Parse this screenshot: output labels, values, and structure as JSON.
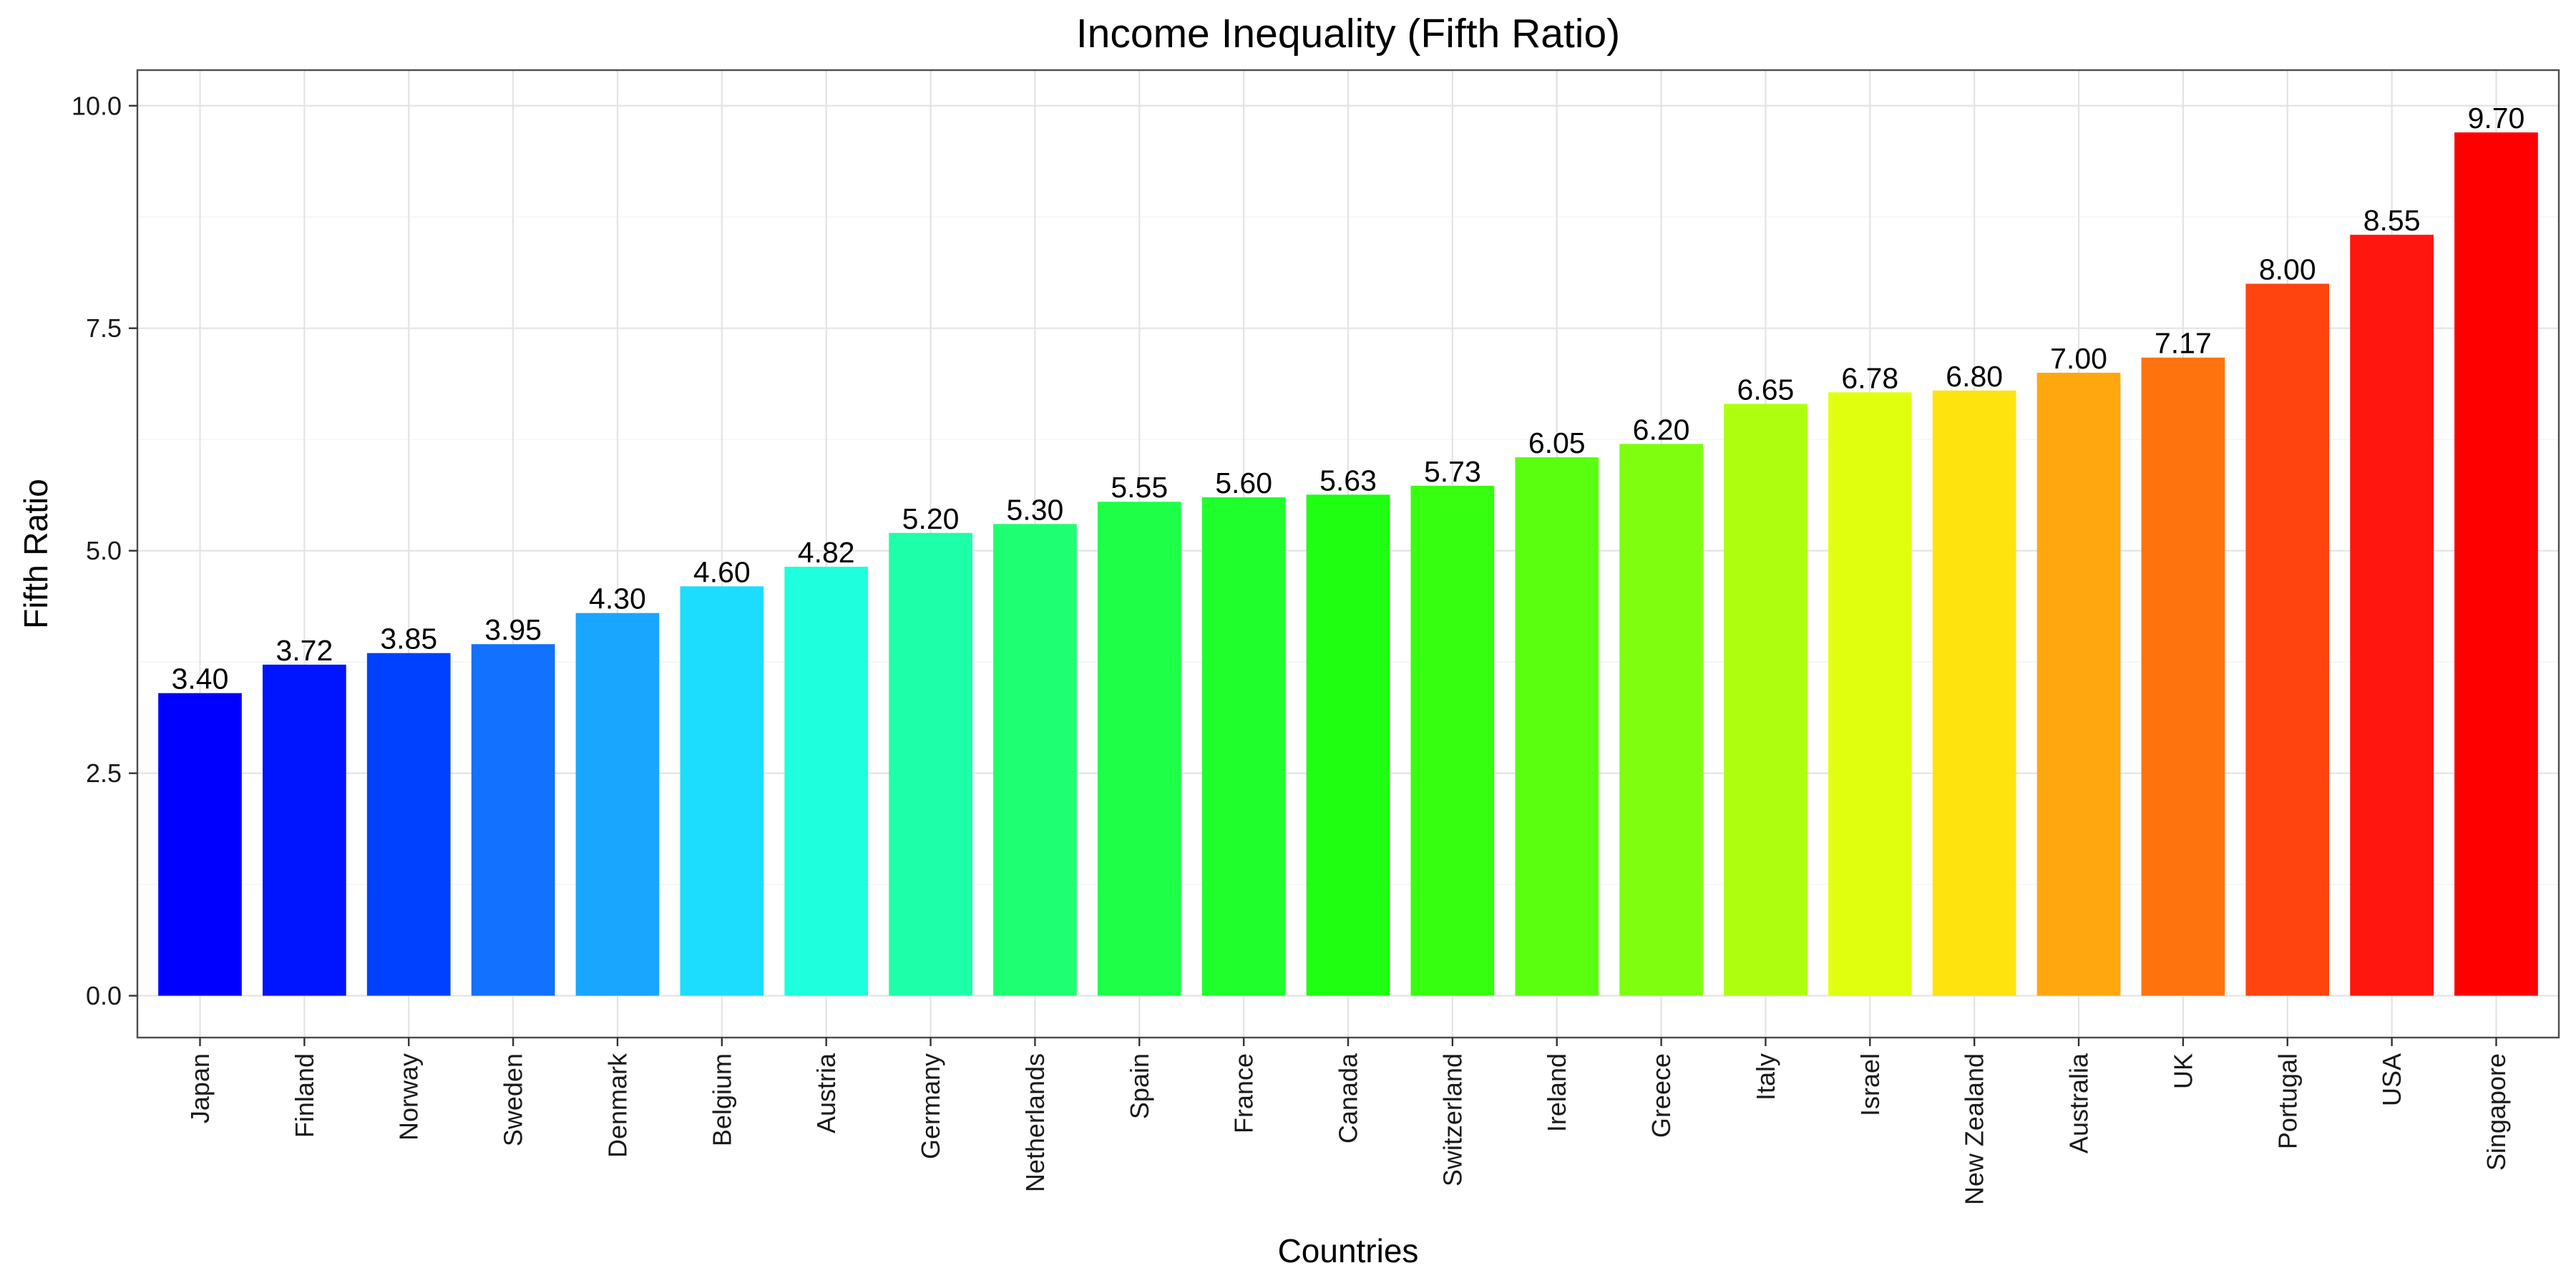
{
  "chart_data": {
    "type": "bar",
    "title": "Income Inequality (Fifth Ratio)",
    "xlabel": "Countries",
    "ylabel": "Fifth Ratio",
    "ylim": [
      -0.47,
      10.4
    ],
    "yticks": [
      0,
      2.5,
      5,
      7.5,
      10
    ],
    "ytick_labels": [
      "0.0",
      "2.5",
      "5.0",
      "7.5",
      "10.0"
    ],
    "grid": true,
    "categories": [
      "Japan",
      "Finland",
      "Norway",
      "Sweden",
      "Denmark",
      "Belgium",
      "Austria",
      "Germany",
      "Netherlands",
      "Spain",
      "France",
      "Canada",
      "Switzerland",
      "Ireland",
      "Greece",
      "Italy",
      "Israel",
      "New Zealand",
      "Australia",
      "UK",
      "Portugal",
      "USA",
      "Singapore"
    ],
    "values": [
      3.4,
      3.72,
      3.85,
      3.95,
      4.3,
      4.6,
      4.82,
      5.2,
      5.3,
      5.55,
      5.6,
      5.63,
      5.73,
      6.05,
      6.2,
      6.65,
      6.78,
      6.8,
      7.0,
      7.17,
      8.0,
      8.55,
      9.7
    ],
    "value_labels": [
      "3.40",
      "3.72",
      "3.85",
      "3.95",
      "4.30",
      "4.60",
      "4.82",
      "5.20",
      "5.30",
      "5.55",
      "5.60",
      "5.63",
      "5.73",
      "6.05",
      "6.20",
      "6.65",
      "6.78",
      "6.80",
      "7.00",
      "7.17",
      "8.00",
      "8.55",
      "9.70"
    ],
    "colors": [
      "#0000FF",
      "#0015FF",
      "#0040FF",
      "#1271FF",
      "#18A6FF",
      "#1DDDFF",
      "#1EFFDD",
      "#1EFFA9",
      "#1EFF72",
      "#1EFF47",
      "#1EFF2C",
      "#1EFF11",
      "#36FF0F",
      "#59FF0F",
      "#7FFF0F",
      "#AEFF0F",
      "#E0FF0F",
      "#FFE30F",
      "#FFA70F",
      "#FF730F",
      "#FF440F",
      "#FF170F",
      "#FF0000"
    ]
  }
}
